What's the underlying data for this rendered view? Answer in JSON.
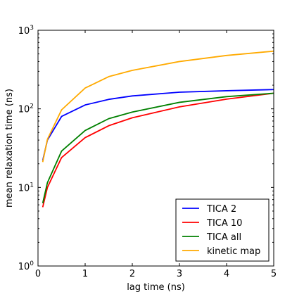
{
  "chart_data": {
    "type": "line",
    "xlabel": "lag time (ns)",
    "ylabel": "mean relaxation time (ns)",
    "xlim": [
      0,
      5
    ],
    "ylim": [
      1,
      1000
    ],
    "y_scale": "log",
    "grid": false,
    "legend_position": "lower-right",
    "x_ticks": [
      0,
      1,
      2,
      3,
      4,
      5
    ],
    "x_tick_labels": [
      "0",
      "1",
      "2",
      "3",
      "4",
      "5"
    ],
    "y_ticks": [
      1,
      10,
      100,
      1000
    ],
    "y_tick_labels": [
      {
        "base": "10",
        "exp": "0"
      },
      {
        "base": "10",
        "exp": "1"
      },
      {
        "base": "10",
        "exp": "2"
      },
      {
        "base": "10",
        "exp": "3"
      }
    ],
    "series": [
      {
        "name": "TICA 2",
        "color": "#0000ff",
        "x": [
          0.1,
          0.2,
          0.5,
          1,
          1.5,
          2,
          3,
          4,
          5
        ],
        "y": [
          22,
          40,
          80,
          112,
          132,
          146,
          163,
          170,
          176
        ]
      },
      {
        "name": "TICA 10",
        "color": "#ff0000",
        "x": [
          0.1,
          0.2,
          0.5,
          1,
          1.5,
          2,
          3,
          4,
          5
        ],
        "y": [
          5.6,
          10,
          24,
          43,
          61,
          77,
          106,
          133,
          158
        ]
      },
      {
        "name": "TICA all",
        "color": "#008000",
        "x": [
          0.1,
          0.2,
          0.5,
          1,
          1.5,
          2,
          3,
          4,
          5
        ],
        "y": [
          6.3,
          11.5,
          29,
          53,
          75,
          91,
          121,
          143,
          158
        ]
      },
      {
        "name": "kinetic map",
        "color": "#ffaa00",
        "x": [
          0.1,
          0.2,
          0.5,
          1,
          1.5,
          2,
          3,
          4,
          5
        ],
        "y": [
          21,
          41,
          97,
          184,
          257,
          309,
          400,
          478,
          542
        ]
      }
    ]
  }
}
